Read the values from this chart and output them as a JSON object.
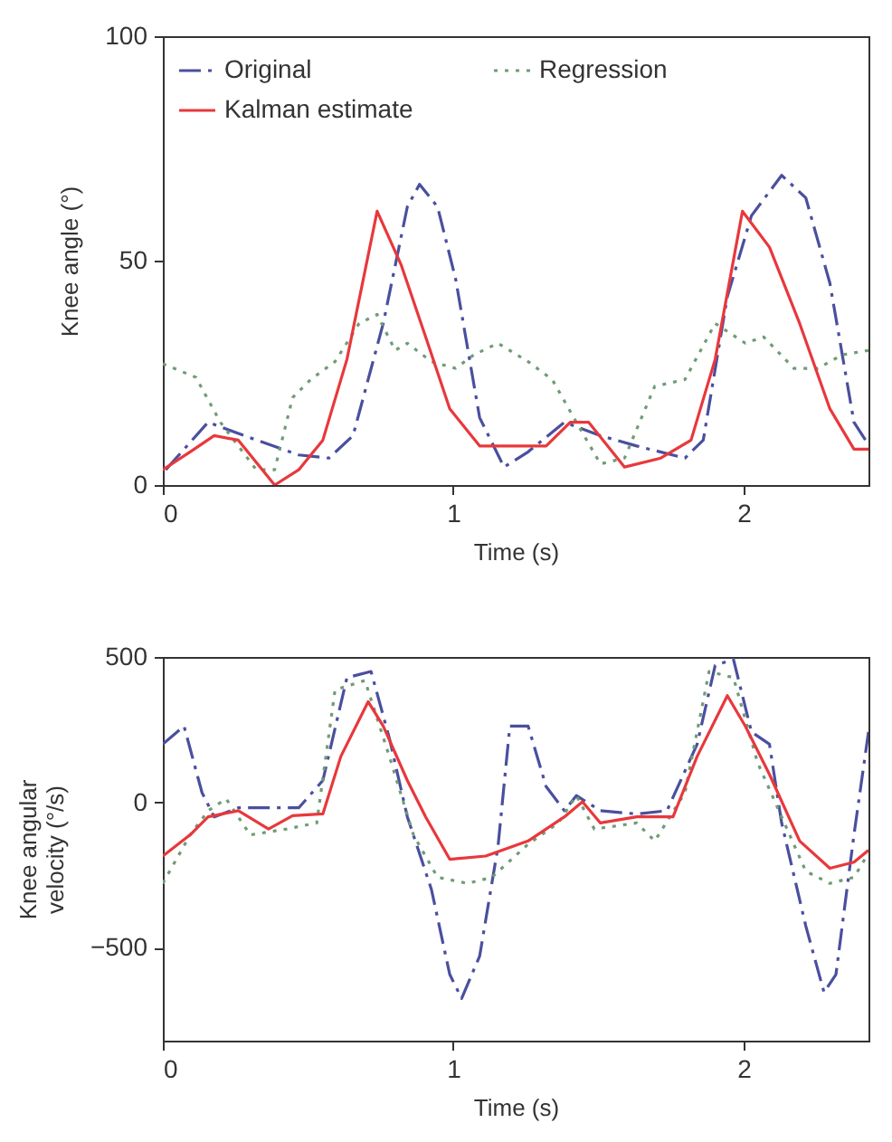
{
  "chart_data": [
    {
      "type": "line",
      "xlabel": "Time (s)",
      "ylabel": "Knee angle (°)",
      "xlim": [
        0,
        2.43
      ],
      "xticks": [
        0,
        1,
        2
      ],
      "ylim": [
        0,
        100
      ],
      "yticks": [
        0,
        50,
        100
      ],
      "legend": "top",
      "grid": false,
      "series": [
        {
          "name": "Original",
          "color": "#4a4f9e",
          "line_style": "dashed",
          "x": [
            0.01,
            0.156,
            0.28,
            0.468,
            0.572,
            0.655,
            0.759,
            0.842,
            0.884,
            0.946,
            1.008,
            1.091,
            1.175,
            1.258,
            1.383,
            1.507,
            1.632,
            1.798,
            1.861,
            1.944,
            2.027,
            2.131,
            2.214,
            2.297,
            2.38,
            2.43
          ],
          "values": [
            3.4,
            14,
            11,
            6.7,
            6,
            11,
            36,
            62,
            67,
            62,
            46,
            15,
            4,
            7.4,
            14,
            11,
            8.7,
            6,
            10,
            42,
            60,
            69,
            64,
            45,
            14,
            9
          ]
        },
        {
          "name": "Regression",
          "color": "#6f9c76",
          "line_style": "dotted",
          "x": [
            0.0,
            0.114,
            0.198,
            0.322,
            0.385,
            0.447,
            0.509,
            0.593,
            0.676,
            0.738,
            0.8,
            0.842,
            0.925,
            1.008,
            1.071,
            1.154,
            1.258,
            1.341,
            1.424,
            1.507,
            1.59,
            1.694,
            1.798,
            1.902,
            2.006,
            2.069,
            2.173,
            2.256,
            2.339,
            2.43
          ],
          "values": [
            27,
            24,
            14,
            3.4,
            3.4,
            19.5,
            23.5,
            27.5,
            36,
            38,
            30,
            31.6,
            27.5,
            26,
            29,
            31.6,
            27.5,
            23.5,
            14,
            4.7,
            6,
            22,
            23.5,
            36,
            31.6,
            33,
            26,
            26,
            29,
            30
          ]
        },
        {
          "name": "Kalman estimate",
          "color": "#e8383c",
          "line_style": "solid",
          "x": [
            0.0,
            0.094,
            0.177,
            0.26,
            0.385,
            0.468,
            0.551,
            0.634,
            0.738,
            0.821,
            0.905,
            0.988,
            1.091,
            1.216,
            1.32,
            1.403,
            1.466,
            1.59,
            1.715,
            1.819,
            1.902,
            1.996,
            2.089,
            2.193,
            2.297,
            2.38,
            2.43
          ],
          "values": [
            3.4,
            7.4,
            11,
            10,
            0,
            3.4,
            10,
            28,
            61,
            49,
            33,
            17,
            8.7,
            8.7,
            8.7,
            14,
            14,
            4,
            6,
            10,
            28,
            61,
            53,
            36,
            17,
            8,
            8
          ]
        }
      ]
    },
    {
      "type": "line",
      "xlabel": "Time (s)",
      "ylabel": "Knee angular velocity (°/s)",
      "xlim": [
        0,
        2.43
      ],
      "xticks": [
        0,
        1,
        2
      ],
      "ylim": [
        -820,
        500
      ],
      "yticks": [
        -500,
        0,
        500
      ],
      "grid": false,
      "series": [
        {
          "color": "#4a4f9e",
          "line_style": "dashed",
          "x": [
            0.0,
            0.073,
            0.135,
            0.177,
            0.26,
            0.468,
            0.551,
            0.634,
            0.717,
            0.78,
            0.842,
            0.925,
            0.988,
            1.029,
            1.091,
            1.154,
            1.195,
            1.258,
            1.32,
            1.383,
            1.424,
            1.507,
            1.632,
            1.736,
            1.84,
            1.902,
            1.965,
            2.027,
            2.089,
            2.131,
            2.214,
            2.277,
            2.318,
            2.38,
            2.43
          ],
          "values": [
            200,
            262,
            33,
            -50,
            -19,
            -19,
            75,
            429,
            450,
            221,
            -50,
            -300,
            -592,
            -675,
            -529,
            -154,
            262,
            262,
            54,
            -29,
            23,
            -29,
            -40,
            -29,
            200,
            471,
            492,
            242,
            200,
            -71,
            -425,
            -654,
            -592,
            -112,
            242
          ]
        },
        {
          "color": "#6f9c76",
          "line_style": "dotted",
          "x": [
            0.0,
            0.094,
            0.156,
            0.218,
            0.301,
            0.426,
            0.53,
            0.593,
            0.696,
            0.78,
            0.863,
            0.946,
            1.05,
            1.133,
            1.258,
            1.362,
            1.424,
            1.486,
            1.632,
            1.694,
            1.798,
            1.881,
            1.965,
            2.048,
            2.131,
            2.214,
            2.297,
            2.38,
            2.43
          ],
          "values": [
            -279,
            -112,
            -29,
            12,
            -112,
            -92,
            -71,
            387,
            419,
            158,
            -112,
            -258,
            -279,
            -258,
            -144,
            -71,
            23,
            -92,
            -71,
            -133,
            33,
            450,
            429,
            137,
            -50,
            -237,
            -279,
            -258,
            -175
          ]
        },
        {
          "color": "#e8383c",
          "line_style": "solid",
          "x": [
            0.0,
            0.094,
            0.156,
            0.26,
            0.364,
            0.447,
            0.551,
            0.613,
            0.707,
            0.759,
            0.842,
            0.905,
            0.988,
            1.112,
            1.258,
            1.383,
            1.445,
            1.507,
            1.632,
            1.757,
            1.84,
            1.944,
            2.006,
            2.089,
            2.193,
            2.297,
            2.38,
            2.43
          ],
          "values": [
            -185,
            -112,
            -50,
            -29,
            -92,
            -46,
            -40,
            158,
            346,
            262,
            75,
            -50,
            -196,
            -185,
            -133,
            -50,
            2,
            -71,
            -50,
            -50,
            158,
            367,
            262,
            96,
            -133,
            -227,
            -206,
            -165
          ]
        }
      ]
    }
  ]
}
